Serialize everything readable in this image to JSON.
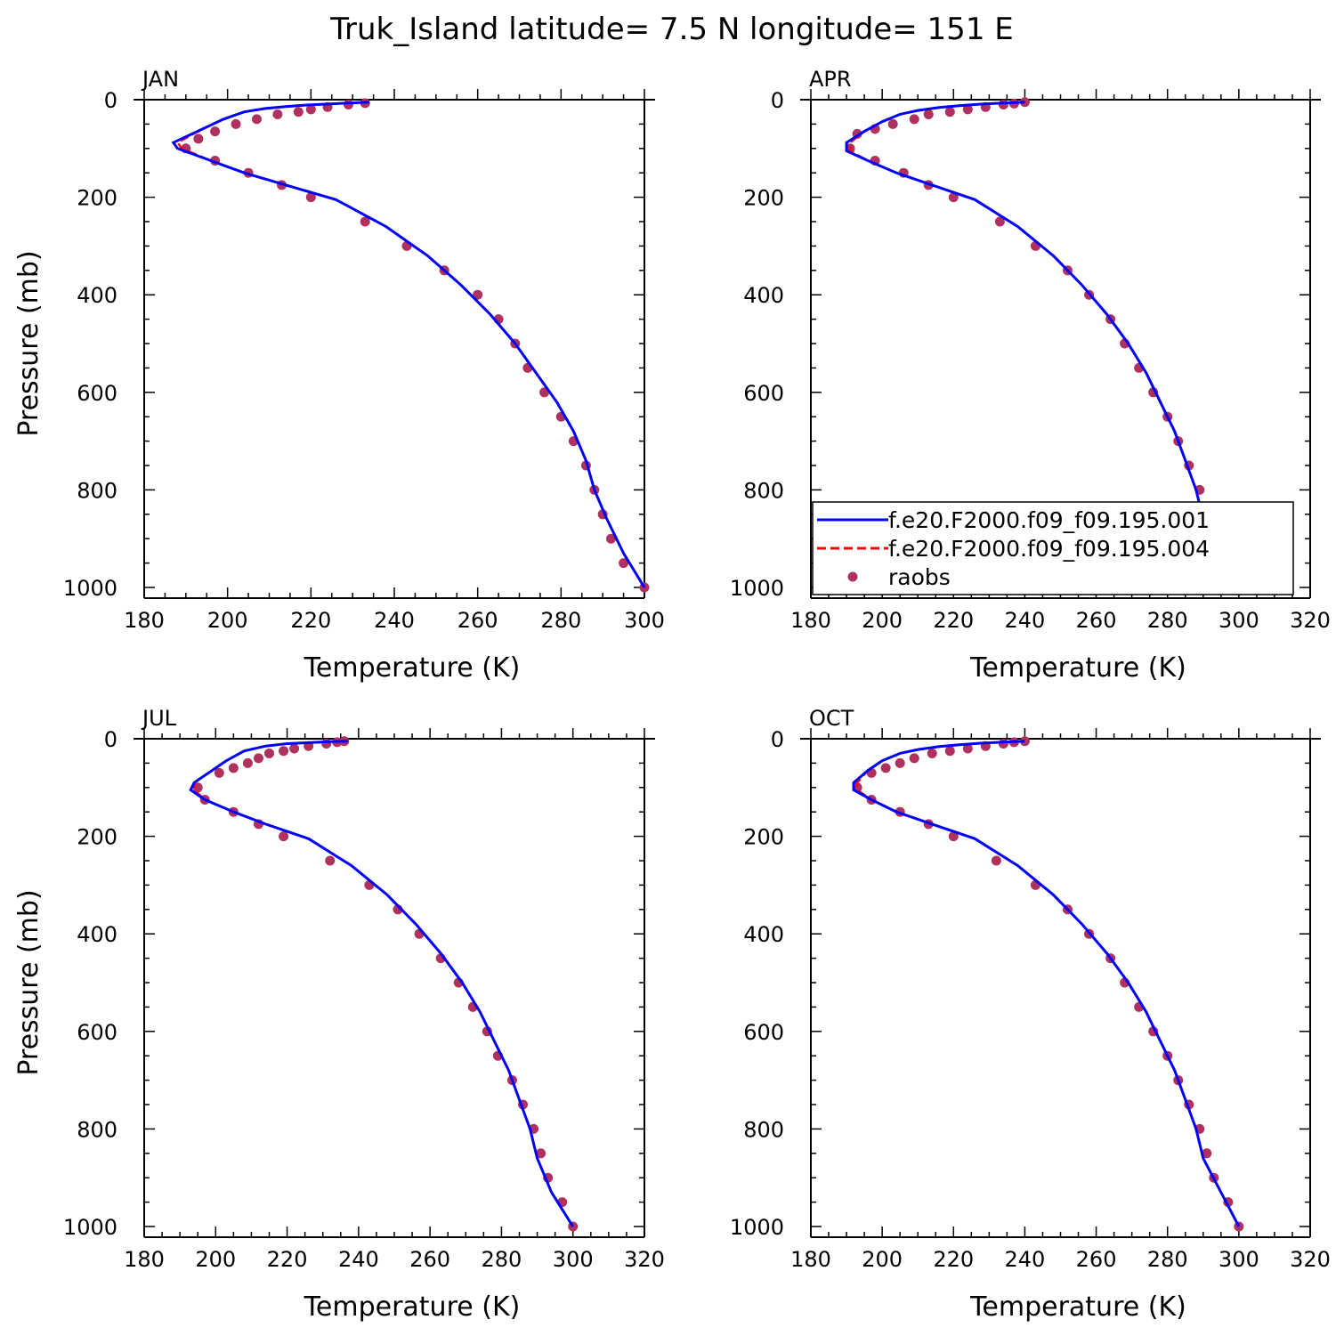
{
  "title": "Truk_Island  latitude= 7.5 N longitude= 151 E",
  "legend": [
    {
      "name": "f.e20.F2000.f09_f09.195.001",
      "style": "solid",
      "color": "#0000ff"
    },
    {
      "name": "f.e20.F2000.f09_f09.195.004",
      "style": "dashed",
      "color": "#ff0000"
    },
    {
      "name": "raobs",
      "style": "marker",
      "color": "#b03060"
    }
  ],
  "chart_data": [
    {
      "type": "line",
      "panel": "JAN",
      "xlabel": "Temperature (K)",
      "ylabel": "Pressure (mb)",
      "xlim": [
        180,
        300
      ],
      "ylim": [
        1000,
        0
      ],
      "xticks": [
        180,
        200,
        220,
        240,
        260,
        280,
        300
      ],
      "yticks": [
        0,
        200,
        400,
        600,
        800,
        1000
      ],
      "series": [
        {
          "name": "f.e20.F2000.f09_f09.195.001",
          "x": [
            234,
            229,
            224,
            219,
            214,
            209,
            204,
            199,
            194,
            187,
            188,
            196,
            204,
            214,
            226,
            238,
            248,
            256,
            263,
            269,
            274,
            279,
            283,
            286,
            288,
            291,
            295,
            300
          ],
          "y": [
            5,
            7,
            9,
            11,
            14,
            18,
            25,
            40,
            60,
            88,
            100,
            125,
            150,
            175,
            205,
            260,
            320,
            380,
            440,
            500,
            560,
            620,
            680,
            740,
            800,
            860,
            930,
            1000
          ]
        },
        {
          "name": "f.e20.F2000.f09_f09.195.004",
          "x": [
            234,
            229,
            224,
            219,
            214,
            209,
            204,
            199,
            194,
            188,
            189,
            196,
            204,
            214,
            226,
            238,
            248,
            256,
            263,
            269,
            274,
            279,
            283,
            286,
            288,
            291,
            295,
            300
          ],
          "y": [
            5,
            7,
            9,
            11,
            14,
            18,
            25,
            40,
            60,
            88,
            100,
            125,
            150,
            175,
            205,
            260,
            320,
            380,
            440,
            500,
            560,
            620,
            680,
            740,
            800,
            860,
            930,
            1000
          ]
        },
        {
          "name": "raobs",
          "x": [
            233,
            229,
            224,
            220,
            217,
            212,
            207,
            202,
            197,
            193,
            190,
            197,
            205,
            213,
            220,
            233,
            243,
            252,
            260,
            265,
            269,
            272,
            276,
            280,
            283,
            286,
            288,
            290,
            292,
            295,
            300
          ],
          "y": [
            7,
            10,
            15,
            20,
            25,
            30,
            40,
            50,
            65,
            80,
            100,
            125,
            150,
            175,
            200,
            250,
            300,
            350,
            400,
            450,
            500,
            550,
            600,
            650,
            700,
            750,
            800,
            850,
            900,
            950,
            1000
          ]
        }
      ]
    },
    {
      "type": "line",
      "panel": "APR",
      "xlabel": "Temperature (K)",
      "ylabel": "",
      "xlim": [
        180,
        320
      ],
      "ylim": [
        1000,
        0
      ],
      "xticks": [
        180,
        200,
        220,
        240,
        260,
        280,
        300,
        320
      ],
      "yticks": [
        0,
        200,
        400,
        600,
        800,
        1000
      ],
      "series": [
        {
          "name": "f.e20.F2000.f09_f09.195.001",
          "x": [
            240,
            234,
            228,
            222,
            216,
            210,
            205,
            200,
            195,
            190,
            190,
            196,
            204,
            214,
            226,
            238,
            248,
            256,
            263,
            269,
            274,
            278,
            282,
            285,
            288,
            290,
            295,
            300
          ],
          "y": [
            5,
            7,
            9,
            12,
            16,
            22,
            30,
            45,
            65,
            88,
            105,
            125,
            150,
            175,
            205,
            260,
            320,
            380,
            440,
            500,
            560,
            620,
            680,
            740,
            800,
            860,
            930,
            1000
          ]
        },
        {
          "name": "f.e20.F2000.f09_f09.195.004",
          "x": [
            240,
            234,
            228,
            222,
            216,
            210,
            205,
            200,
            195,
            191,
            191,
            196,
            204,
            214,
            226,
            238,
            248,
            256,
            263,
            269,
            274,
            278,
            282,
            285,
            288,
            290,
            295,
            300
          ],
          "y": [
            5,
            7,
            9,
            12,
            16,
            22,
            30,
            45,
            65,
            88,
            105,
            125,
            150,
            175,
            205,
            260,
            320,
            380,
            440,
            500,
            560,
            620,
            680,
            740,
            800,
            860,
            930,
            1000
          ]
        },
        {
          "name": "raobs",
          "x": [
            240,
            237,
            234,
            229,
            224,
            219,
            213,
            209,
            203,
            198,
            193,
            191,
            198,
            206,
            213,
            220,
            233,
            243,
            252,
            258,
            264,
            268,
            272,
            276,
            280,
            283,
            286,
            289,
            290,
            292,
            297,
            300
          ],
          "y": [
            5,
            8,
            10,
            15,
            20,
            25,
            30,
            40,
            50,
            60,
            70,
            100,
            125,
            150,
            175,
            200,
            250,
            300,
            350,
            400,
            450,
            500,
            550,
            600,
            650,
            700,
            750,
            800,
            850,
            900,
            950,
            1000
          ]
        }
      ]
    },
    {
      "type": "line",
      "panel": "JUL",
      "xlabel": "Temperature (K)",
      "ylabel": "Pressure (mb)",
      "xlim": [
        180,
        320
      ],
      "ylim": [
        1000,
        0
      ],
      "xticks": [
        180,
        200,
        220,
        240,
        260,
        280,
        300,
        320
      ],
      "yticks": [
        0,
        200,
        400,
        600,
        800,
        1000
      ],
      "series": [
        {
          "name": "f.e20.F2000.f09_f09.195.001",
          "x": [
            237,
            232,
            226,
            220,
            214,
            208,
            203,
            199,
            194,
            193,
            197,
            205,
            214,
            226,
            238,
            248,
            256,
            263,
            269,
            274,
            278,
            282,
            285,
            288,
            290,
            294,
            300
          ],
          "y": [
            5,
            6,
            8,
            10,
            15,
            25,
            45,
            65,
            90,
            105,
            125,
            150,
            175,
            205,
            260,
            320,
            380,
            440,
            500,
            560,
            620,
            680,
            740,
            800,
            860,
            930,
            1000
          ]
        },
        {
          "name": "f.e20.F2000.f09_f09.195.004",
          "x": [
            237,
            232,
            226,
            220,
            214,
            208,
            203,
            199,
            194,
            194,
            197,
            205,
            214,
            226,
            238,
            248,
            256,
            263,
            269,
            274,
            278,
            282,
            285,
            288,
            290,
            294,
            300
          ],
          "y": [
            5,
            6,
            8,
            10,
            15,
            25,
            45,
            65,
            90,
            105,
            125,
            150,
            175,
            205,
            260,
            320,
            380,
            440,
            500,
            560,
            620,
            680,
            740,
            800,
            860,
            930,
            1000
          ]
        },
        {
          "name": "raobs",
          "x": [
            236,
            234,
            231,
            226,
            222,
            219,
            215,
            212,
            209,
            205,
            201,
            195,
            197,
            205,
            212,
            219,
            232,
            243,
            251,
            257,
            263,
            268,
            272,
            276,
            279,
            283,
            286,
            289,
            291,
            293,
            297,
            300
          ],
          "y": [
            5,
            7,
            10,
            15,
            20,
            25,
            30,
            40,
            50,
            60,
            70,
            100,
            125,
            150,
            175,
            200,
            250,
            300,
            350,
            400,
            450,
            500,
            550,
            600,
            650,
            700,
            750,
            800,
            850,
            900,
            950,
            1000
          ]
        }
      ]
    },
    {
      "type": "line",
      "panel": "OCT",
      "xlabel": "Temperature (K)",
      "ylabel": "",
      "xlim": [
        180,
        320
      ],
      "ylim": [
        1000,
        0
      ],
      "xticks": [
        180,
        200,
        220,
        240,
        260,
        280,
        300,
        320
      ],
      "yticks": [
        0,
        200,
        400,
        600,
        800,
        1000
      ],
      "series": [
        {
          "name": "f.e20.F2000.f09_f09.195.001",
          "x": [
            240,
            234,
            228,
            222,
            216,
            210,
            205,
            200,
            196,
            192,
            192,
            197,
            204,
            214,
            226,
            238,
            248,
            256,
            263,
            269,
            274,
            278,
            282,
            285,
            288,
            290,
            295,
            300
          ],
          "y": [
            5,
            7,
            9,
            12,
            16,
            22,
            30,
            45,
            65,
            90,
            105,
            125,
            150,
            175,
            205,
            260,
            320,
            380,
            440,
            500,
            560,
            620,
            680,
            740,
            800,
            860,
            930,
            1000
          ]
        },
        {
          "name": "f.e20.F2000.f09_f09.195.004",
          "x": [
            240,
            234,
            228,
            222,
            216,
            210,
            205,
            200,
            196,
            193,
            193,
            197,
            204,
            214,
            226,
            238,
            248,
            256,
            263,
            269,
            274,
            278,
            282,
            285,
            288,
            290,
            295,
            300
          ],
          "y": [
            5,
            7,
            9,
            12,
            16,
            22,
            30,
            45,
            65,
            90,
            105,
            125,
            150,
            175,
            205,
            260,
            320,
            380,
            440,
            500,
            560,
            620,
            680,
            740,
            800,
            860,
            930,
            1000
          ]
        },
        {
          "name": "raobs",
          "x": [
            240,
            237,
            234,
            229,
            224,
            219,
            214,
            209,
            205,
            201,
            197,
            193,
            197,
            205,
            213,
            220,
            232,
            243,
            252,
            258,
            264,
            268,
            272,
            276,
            280,
            283,
            286,
            289,
            291,
            293,
            297,
            300
          ],
          "y": [
            5,
            7,
            10,
            15,
            20,
            25,
            30,
            40,
            50,
            60,
            70,
            100,
            125,
            150,
            175,
            200,
            250,
            300,
            350,
            400,
            450,
            500,
            550,
            600,
            650,
            700,
            750,
            800,
            850,
            900,
            950,
            1000
          ]
        }
      ]
    }
  ]
}
